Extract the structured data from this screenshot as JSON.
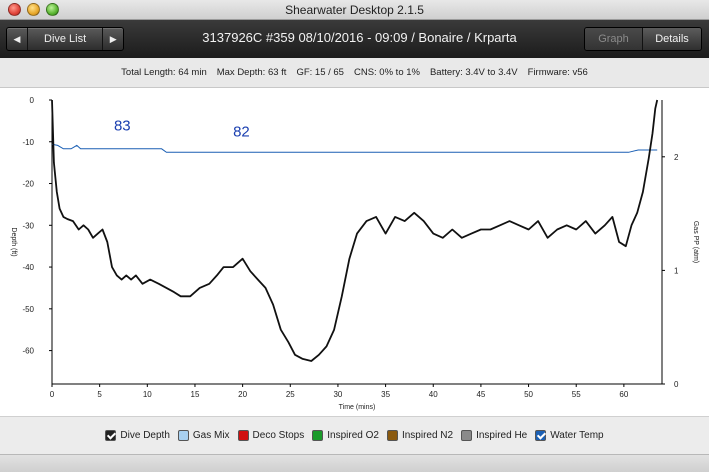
{
  "window": {
    "title": "Shearwater Desktop 2.1.5"
  },
  "toolbar": {
    "prev_icon": "left-arrow-icon",
    "prev_glyph": "◀",
    "dive_list_label": "Dive List",
    "next_icon": "right-arrow-icon",
    "next_glyph": "▶",
    "dive_title": "3137926C #359 08/10/2016 - 09:09  / Bonaire / Krparta",
    "graph_label": "Graph",
    "details_label": "Details"
  },
  "info": {
    "total_length": "Total Length: 64 min",
    "max_depth": "Max Depth: 63 ft",
    "gf": "GF: 15 / 65",
    "cns": "CNS: 0% to 1%",
    "battery": "Battery: 3.4V to 3.4V",
    "firmware": "Firmware: v56"
  },
  "legend": [
    {
      "label": "Dive Depth",
      "checked": true,
      "color": "#222222"
    },
    {
      "label": "Gas Mix",
      "checked": false,
      "color": "#a8d0f0"
    },
    {
      "label": "Deco Stops",
      "checked": false,
      "color": "#d01010"
    },
    {
      "label": "Inspired O2",
      "checked": false,
      "color": "#1a9a2a"
    },
    {
      "label": "Inspired N2",
      "checked": false,
      "color": "#8a5a10"
    },
    {
      "label": "Inspired He",
      "checked": false,
      "color": "#8a8a8a"
    },
    {
      "label": "Water Temp",
      "checked": true,
      "color": "#1a5fb4"
    }
  ],
  "chart_data": {
    "type": "line",
    "xlabel": "Time (mins)",
    "ylabel": "Depth (ft)",
    "y2label": "Gas PP (atm)",
    "xlim": [
      0,
      64
    ],
    "ylim": [
      0,
      68
    ],
    "y2lim": [
      0,
      2.5
    ],
    "x_ticks": [
      0,
      5,
      10,
      15,
      20,
      25,
      30,
      35,
      40,
      45,
      50,
      55,
      60
    ],
    "y_ticks": [
      0,
      -10,
      -20,
      -30,
      -40,
      -50,
      -60
    ],
    "y2_ticks": [
      0,
      1,
      2
    ],
    "depth_series": {
      "name": "Dive Depth",
      "color": "#111111",
      "x": [
        0,
        0.2,
        0.5,
        0.8,
        1.2,
        1.6,
        2.2,
        2.8,
        3.3,
        3.8,
        4.3,
        4.8,
        5.3,
        5.8,
        6.3,
        6.8,
        7.3,
        7.8,
        8.3,
        8.8,
        9.5,
        10.3,
        11.2,
        12.0,
        12.8,
        13.5,
        14.5,
        15.5,
        16.5,
        17.3,
        18.0,
        19.0,
        20.0,
        20.8,
        21.6,
        22.4,
        23.2,
        24.0,
        24.8,
        25.5,
        26.3,
        27.2,
        28.0,
        28.8,
        29.6,
        30.4,
        31.2,
        32.0,
        33.0,
        34.0,
        35.0,
        36.0,
        37.0,
        38.0,
        39.0,
        40.0,
        41.0,
        42.0,
        43.0,
        44.0,
        45.0,
        46.0,
        47.0,
        48.0,
        49.0,
        50.0,
        51.0,
        52.0,
        53.0,
        54.0,
        55.0,
        56.0,
        57.0,
        58.0,
        58.8,
        59.5,
        60.2,
        60.8,
        61.4,
        62.0,
        62.6,
        63.0,
        63.3,
        63.5
      ],
      "y": [
        0,
        15,
        22,
        26,
        28,
        28.5,
        29,
        31,
        30,
        31,
        33,
        32,
        31,
        34,
        40,
        42,
        43,
        42,
        43,
        42,
        44,
        43,
        44,
        45,
        46,
        47,
        47,
        45,
        44,
        42,
        40,
        40,
        38,
        41,
        43,
        45,
        49,
        55,
        58,
        61,
        62,
        62.5,
        61,
        59,
        55,
        47,
        38,
        32,
        29,
        28,
        32,
        28,
        29,
        27,
        29,
        32,
        33,
        31,
        33,
        32,
        31,
        31,
        30,
        29,
        30,
        31,
        29,
        33,
        31,
        30,
        31,
        29,
        32,
        30,
        28,
        34,
        35,
        30,
        27,
        22,
        14,
        8,
        2,
        0
      ]
    },
    "gas_series": {
      "name": "Water Temp",
      "color": "#1a5fb4",
      "x": [
        0,
        0.6,
        1.2,
        2.0,
        2.6,
        3.0,
        3.8,
        8.0,
        11.5,
        12.0,
        20.0,
        30.0,
        40.0,
        50.0,
        59.0,
        60.5,
        61.5,
        62.5,
        63.5
      ],
      "y": [
        2.11,
        2.1,
        2.07,
        2.07,
        2.1,
        2.07,
        2.07,
        2.07,
        2.07,
        2.04,
        2.04,
        2.04,
        2.04,
        2.04,
        2.04,
        2.04,
        2.06,
        2.06,
        2.06
      ]
    },
    "annotations": [
      {
        "text": "83",
        "x": 6.5,
        "y2": 2.23
      },
      {
        "text": "82",
        "x": 19.0,
        "y2": 2.18
      }
    ]
  }
}
